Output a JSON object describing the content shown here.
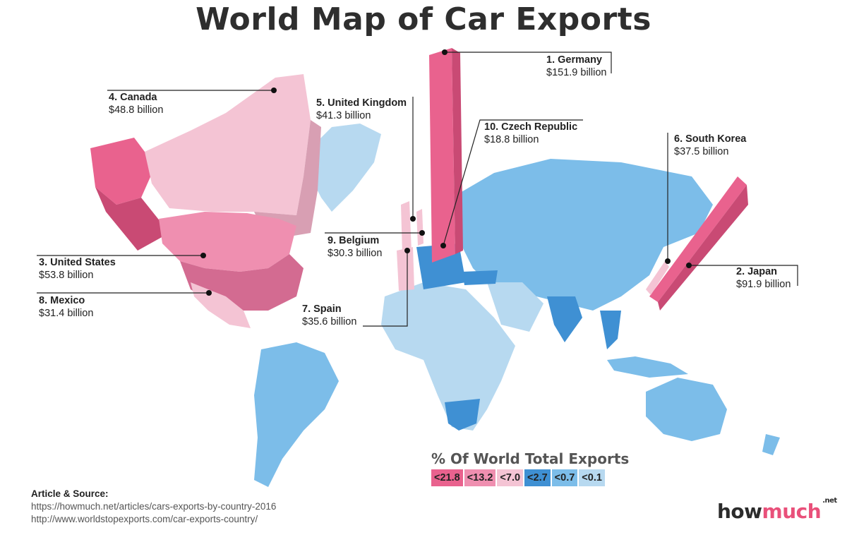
{
  "title": "World Map of Car Exports",
  "labels": [
    {
      "key": "germany",
      "name": "1. Germany",
      "value": "$151.9 billion"
    },
    {
      "key": "japan",
      "name": "2. Japan",
      "value": "$91.9 billion"
    },
    {
      "key": "united_states",
      "name": "3. United States",
      "value": "$53.8 billion"
    },
    {
      "key": "canada",
      "name": "4. Canada",
      "value": "$48.8 billion"
    },
    {
      "key": "united_kingdom",
      "name": "5. United Kingdom",
      "value": "$41.3 billion"
    },
    {
      "key": "south_korea",
      "name": "6. South Korea",
      "value": "$37.5 billion"
    },
    {
      "key": "spain",
      "name": "7. Spain",
      "value": "$35.6 billion"
    },
    {
      "key": "mexico",
      "name": "8. Mexico",
      "value": "$31.4 billion"
    },
    {
      "key": "belgium",
      "name": "9. Belgium",
      "value": "$30.3 billion"
    },
    {
      "key": "czech_republic",
      "name": "10. Czech Republic",
      "value": "$18.8 billion"
    }
  ],
  "legend": {
    "title": "% Of World Total Exports",
    "items": [
      {
        "label": "<21.8",
        "color": "#e9628e"
      },
      {
        "label": "<13.2",
        "color": "#ef8fb0"
      },
      {
        "label": "<7.0",
        "color": "#f4c4d4"
      },
      {
        "label": "<2.7",
        "color": "#3f90d3"
      },
      {
        "label": "<0.7",
        "color": "#7cbde9"
      },
      {
        "label": "<0.1",
        "color": "#b7d9f0"
      }
    ]
  },
  "source": {
    "title": "Article & Source:",
    "links": [
      "https://howmuch.net/articles/cars-exports-by-country-2016",
      "http://www.worldstopexports.com/car-exports-country/"
    ]
  },
  "logo": {
    "main": "how",
    "accent": "much",
    "suffix": ".net"
  }
}
